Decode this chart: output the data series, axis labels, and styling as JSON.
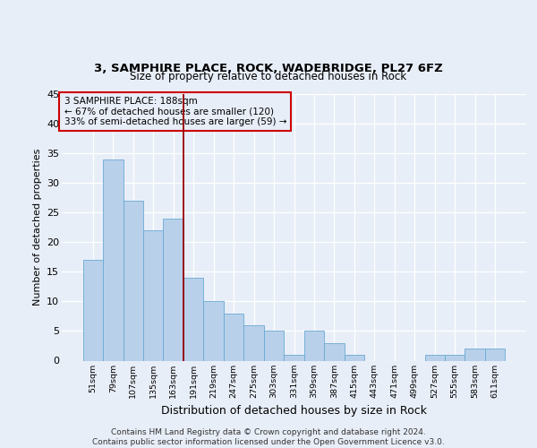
{
  "title1": "3, SAMPHIRE PLACE, ROCK, WADEBRIDGE, PL27 6FZ",
  "title2": "Size of property relative to detached houses in Rock",
  "xlabel": "Distribution of detached houses by size in Rock",
  "ylabel": "Number of detached properties",
  "categories": [
    "51sqm",
    "79sqm",
    "107sqm",
    "135sqm",
    "163sqm",
    "191sqm",
    "219sqm",
    "247sqm",
    "275sqm",
    "303sqm",
    "331sqm",
    "359sqm",
    "387sqm",
    "415sqm",
    "443sqm",
    "471sqm",
    "499sqm",
    "527sqm",
    "555sqm",
    "583sqm",
    "611sqm"
  ],
  "values": [
    17,
    34,
    27,
    22,
    24,
    14,
    10,
    8,
    6,
    5,
    1,
    5,
    3,
    1,
    0,
    0,
    0,
    1,
    1,
    2,
    2
  ],
  "bar_color": "#b8d0ea",
  "bar_edge_color": "#6aaad4",
  "vline_color": "#990000",
  "annotation_lines": [
    "3 SAMPHIRE PLACE: 188sqm",
    "← 67% of detached houses are smaller (120)",
    "33% of semi-detached houses are larger (59) →"
  ],
  "box_color": "#cc0000",
  "ylim": [
    0,
    45
  ],
  "yticks": [
    0,
    5,
    10,
    15,
    20,
    25,
    30,
    35,
    40,
    45
  ],
  "footer": "Contains HM Land Registry data © Crown copyright and database right 2024.\nContains public sector information licensed under the Open Government Licence v3.0.",
  "bg_color": "#e8eef8",
  "plot_bg": "#e8eef8",
  "grid_color": "#ffffff"
}
